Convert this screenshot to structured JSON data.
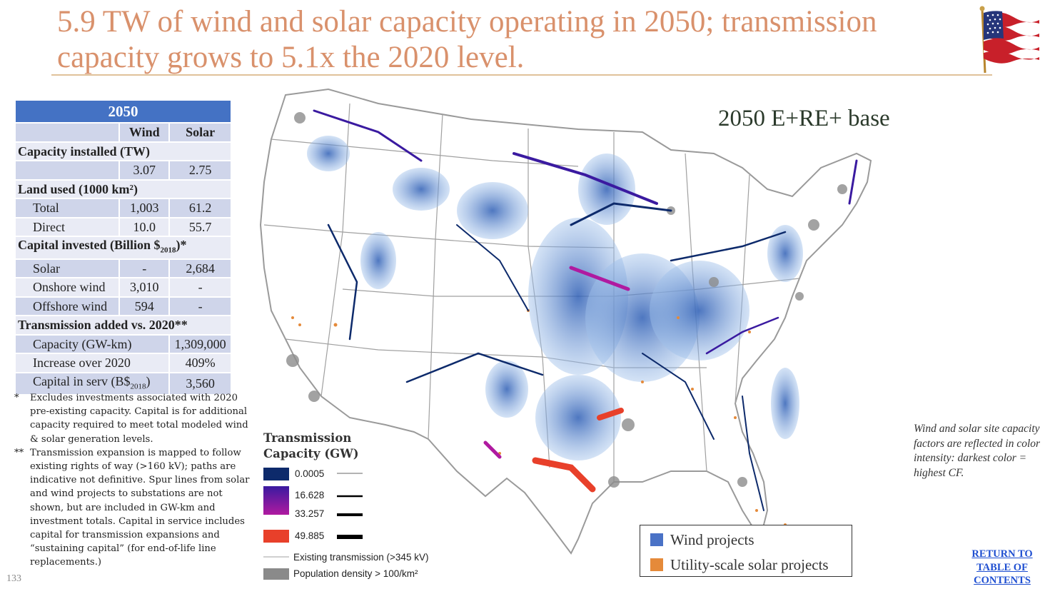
{
  "title": "5.9 TW of wind and solar capacity operating in 2050; transmission capacity grows to 5.1x the 2020 level.",
  "table": {
    "header": "2050",
    "col_wind": "Wind",
    "col_solar": "Solar",
    "capacity_section": "Capacity installed (TW)",
    "capacity_wind": "3.07",
    "capacity_solar": "2.75",
    "land_section": "Land used (1000 km²)",
    "land_total_label": "Total",
    "land_total_wind": "1,003",
    "land_total_solar": "61.2",
    "land_direct_label": "Direct",
    "land_direct_wind": "10.0",
    "land_direct_solar": "55.7",
    "capital_section_a": "Capital invested (Billion $",
    "capital_section_sub": "2018",
    "capital_section_b": ")*",
    "capital_solar_label": "Solar",
    "capital_solar_wind": "-",
    "capital_solar_solar": "2,684",
    "capital_onshore_label": "Onshore wind",
    "capital_onshore_wind": "3,010",
    "capital_onshore_solar": "-",
    "capital_offshore_label": "Offshore wind",
    "capital_offshore_wind": "594",
    "capital_offshore_solar": "-",
    "trans_section": "Transmission added vs. 2020**",
    "trans_capacity_label": "Capacity (GW-km)",
    "trans_capacity_value": "1,309,000",
    "trans_increase_label": "Increase over 2020",
    "trans_increase_value": "409%",
    "trans_capital_label_a": "Capital in serv (B$",
    "trans_capital_label_sub": "2018",
    "trans_capital_label_b": ")",
    "trans_capital_value": "3,560"
  },
  "notes": [
    {
      "mark": "*",
      "text": "Excludes investments associated with 2020 pre-existing capacity. Capital is for additional capacity required to meet total modeled wind & solar generation levels."
    },
    {
      "mark": "**",
      "text": "Transmission expansion is mapped to follow existing rights of way (>160 kV); paths are indicative not definitive. Spur lines from solar and wind projects to substations are not shown, but are included in GW-km and investment totals. Capital in service includes capital for transmission expansions and “sustaining capital” (for end-of-life line replacements.)"
    }
  ],
  "page_number": "133",
  "map_label": "2050 E+RE+ base",
  "legend": {
    "title_line1": "Transmission",
    "title_line2": "Capacity (GW)",
    "v1": "0.0005",
    "v2": "16.628",
    "v3": "33.257",
    "v4": "49.885",
    "existing": "Existing transmission (>345 kV)",
    "population": "Population density > 100/km²",
    "colors": {
      "c1": "#0d2a6b",
      "c2": "#3a1aa0",
      "c3": "#b01aa0",
      "c4": "#e8402a"
    }
  },
  "projects": {
    "wind": "Wind projects",
    "solar": "Utility-scale solar projects",
    "wind_color": "#4a72c6",
    "solar_color": "#e58a3a"
  },
  "side_note": "Wind and solar site capacity factors are reflected in color intensity: darkest color = highest CF.",
  "toc_link": {
    "line1": "RETURN TO",
    "line2": "TABLE OF",
    "line3": "CONTENTS"
  }
}
